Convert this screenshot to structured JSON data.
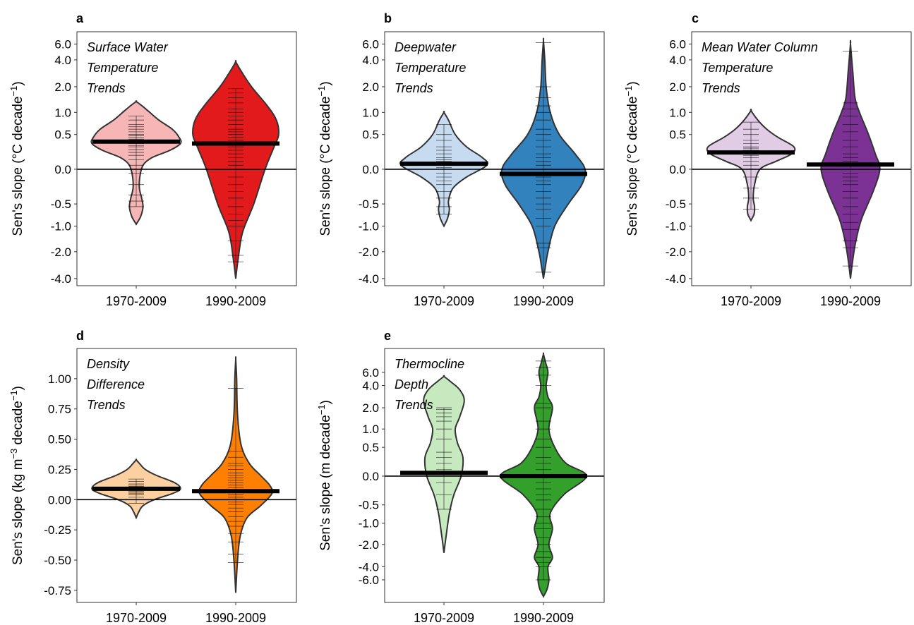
{
  "chart_data": [
    {
      "type": "violin",
      "letter": "a",
      "title_lines": [
        "Surface Water",
        "Temperature",
        "Trends"
      ],
      "ylabel": "Sen's slope (°C decade⁻¹)",
      "ylabel_parts": {
        "main": "Sen's slope  (°C  decade",
        "sup": "−1",
        "close": ")"
      },
      "scale": "asinh",
      "ylim": [
        -4.8,
        8.2
      ],
      "ticks": [
        6.0,
        4.0,
        2.0,
        1.0,
        0.5,
        0.0,
        -0.5,
        -1.0,
        -2.0,
        -4.0
      ],
      "tick_labels": [
        "6.0",
        "4.0",
        "2.0",
        "1.0",
        "0.5",
        "0.0",
        "-0.5",
        "-1.0",
        "-2.0",
        "-4.0"
      ],
      "categories": [
        "1970-2009",
        "1990-2009"
      ],
      "colors": [
        "#f7b6b6",
        "#e31a1c"
      ],
      "medians": [
        0.38,
        0.35
      ],
      "violins": [
        {
          "profile": [
            [
              -0.95,
              0.0
            ],
            [
              -0.75,
              0.1
            ],
            [
              -0.55,
              0.15
            ],
            [
              -0.4,
              0.12
            ],
            [
              -0.25,
              0.07
            ],
            [
              -0.1,
              0.08
            ],
            [
              0.05,
              0.15
            ],
            [
              0.15,
              0.35
            ],
            [
              0.25,
              0.75
            ],
            [
              0.35,
              0.98
            ],
            [
              0.45,
              0.95
            ],
            [
              0.6,
              0.8
            ],
            [
              0.8,
              0.5
            ],
            [
              1.0,
              0.3
            ],
            [
              1.2,
              0.13
            ],
            [
              1.35,
              0.0
            ]
          ],
          "points": [
            -0.55,
            -0.45,
            -0.35,
            -0.2,
            -0.05,
            0.05,
            0.12,
            0.18,
            0.22,
            0.26,
            0.3,
            0.32,
            0.35,
            0.38,
            0.4,
            0.42,
            0.45,
            0.48,
            0.5,
            0.55,
            0.6,
            0.65,
            0.7,
            0.8,
            0.9
          ]
        },
        {
          "profile": [
            [
              -4.0,
              0.0
            ],
            [
              -2.5,
              0.05
            ],
            [
              -1.2,
              0.15
            ],
            [
              -0.5,
              0.4
            ],
            [
              0.0,
              0.65
            ],
            [
              0.3,
              0.85
            ],
            [
              0.5,
              0.95
            ],
            [
              0.8,
              0.9
            ],
            [
              1.2,
              0.7
            ],
            [
              2.0,
              0.35
            ],
            [
              3.0,
              0.12
            ],
            [
              3.8,
              0.0
            ]
          ],
          "points": [
            -2.6,
            -2.2,
            -1.5,
            -1.0,
            -0.85,
            -0.7,
            -0.55,
            -0.4,
            -0.3,
            -0.2,
            -0.1,
            0.0,
            0.05,
            0.1,
            0.15,
            0.2,
            0.25,
            0.3,
            0.35,
            0.4,
            0.45,
            0.5,
            0.55,
            0.6,
            0.7,
            0.8,
            0.9,
            1.0,
            1.1,
            1.3,
            1.5,
            1.7,
            1.9
          ]
        }
      ]
    },
    {
      "type": "violin",
      "letter": "b",
      "title_lines": [
        "Deepwater",
        "Temperature",
        "Trends"
      ],
      "ylabel": "Sen's slope (°C decade⁻¹)",
      "ylabel_parts": {
        "main": "Sen's slope  (°C  decade",
        "sup": "−1",
        "close": ")"
      },
      "scale": "asinh",
      "ylim": [
        -4.8,
        8.2
      ],
      "ticks": [
        6.0,
        4.0,
        2.0,
        1.0,
        0.5,
        0.0,
        -0.5,
        -1.0,
        -2.0,
        -4.0
      ],
      "tick_labels": [
        "6.0",
        "4.0",
        "2.0",
        "1.0",
        "0.5",
        "0.0",
        "-0.5",
        "-1.0",
        "-2.0",
        "-4.0"
      ],
      "categories": [
        "1970-2009",
        "1990-2009"
      ],
      "colors": [
        "#c6dbef",
        "#3182bd"
      ],
      "medians": [
        0.07,
        -0.06
      ],
      "violins": [
        {
          "profile": [
            [
              -1.0,
              0.0
            ],
            [
              -0.8,
              0.08
            ],
            [
              -0.6,
              0.12
            ],
            [
              -0.45,
              0.1
            ],
            [
              -0.25,
              0.2
            ],
            [
              -0.1,
              0.5
            ],
            [
              0.05,
              0.95
            ],
            [
              0.15,
              0.85
            ],
            [
              0.3,
              0.5
            ],
            [
              0.5,
              0.25
            ],
            [
              0.8,
              0.1
            ],
            [
              1.0,
              0.0
            ]
          ],
          "points": [
            -0.7,
            -0.55,
            -0.4,
            -0.3,
            -0.2,
            -0.15,
            -0.1,
            -0.05,
            0.0,
            0.02,
            0.05,
            0.08,
            0.1,
            0.12,
            0.15,
            0.2,
            0.25,
            0.3,
            0.4,
            0.5,
            0.7
          ]
        },
        {
          "profile": [
            [
              -4.0,
              0.0
            ],
            [
              -3.0,
              0.04
            ],
            [
              -2.0,
              0.1
            ],
            [
              -1.0,
              0.25
            ],
            [
              -0.5,
              0.55
            ],
            [
              -0.2,
              0.85
            ],
            [
              0.0,
              0.92
            ],
            [
              0.2,
              0.7
            ],
            [
              0.5,
              0.35
            ],
            [
              1.0,
              0.15
            ],
            [
              2.0,
              0.06
            ],
            [
              4.0,
              0.03
            ],
            [
              6.5,
              0.0
            ]
          ],
          "points": [
            -3.4,
            -1.8,
            -1.6,
            -1.0,
            -0.8,
            -0.6,
            -0.5,
            -0.4,
            -0.3,
            -0.2,
            -0.15,
            -0.1,
            -0.05,
            0.0,
            0.05,
            0.1,
            0.15,
            0.2,
            0.3,
            0.4,
            0.5,
            0.6,
            0.8,
            1.0,
            1.2,
            1.5,
            2.0,
            6.2
          ]
        }
      ]
    },
    {
      "type": "violin",
      "letter": "c",
      "title_lines": [
        "Mean Water Column",
        "Temperature",
        "Trends"
      ],
      "ylabel": "Sen's slope (°C decade⁻¹)",
      "ylabel_parts": {
        "main": "Sen's slope  (°C  decade",
        "sup": "−1",
        "close": ")"
      },
      "scale": "asinh",
      "ylim": [
        -4.8,
        8.2
      ],
      "ticks": [
        6.0,
        4.0,
        2.0,
        1.0,
        0.5,
        0.0,
        -0.5,
        -1.0,
        -2.0,
        -4.0
      ],
      "tick_labels": [
        "6.0",
        "4.0",
        "2.0",
        "1.0",
        "0.5",
        "0.0",
        "-0.5",
        "-1.0",
        "-2.0",
        "-4.0"
      ],
      "categories": [
        "1970-2009",
        "1990-2009"
      ],
      "colors": [
        "#e1cce6",
        "#7b3294"
      ],
      "medians": [
        0.22,
        0.06
      ],
      "violins": [
        {
          "profile": [
            [
              -0.85,
              0.0
            ],
            [
              -0.7,
              0.07
            ],
            [
              -0.55,
              0.08
            ],
            [
              -0.4,
              0.05
            ],
            [
              -0.2,
              0.08
            ],
            [
              0.0,
              0.2
            ],
            [
              0.1,
              0.55
            ],
            [
              0.2,
              0.9
            ],
            [
              0.3,
              0.95
            ],
            [
              0.45,
              0.6
            ],
            [
              0.6,
              0.35
            ],
            [
              0.8,
              0.15
            ],
            [
              1.05,
              0.0
            ]
          ],
          "points": [
            -0.6,
            -0.4,
            -0.25,
            -0.1,
            0.0,
            0.05,
            0.1,
            0.15,
            0.18,
            0.2,
            0.22,
            0.25,
            0.28,
            0.3,
            0.35,
            0.4,
            0.5,
            0.6,
            0.75
          ]
        },
        {
          "profile": [
            [
              -4.0,
              0.0
            ],
            [
              -2.5,
              0.05
            ],
            [
              -1.5,
              0.12
            ],
            [
              -0.8,
              0.25
            ],
            [
              -0.3,
              0.5
            ],
            [
              0.0,
              0.65
            ],
            [
              0.2,
              0.55
            ],
            [
              0.5,
              0.4
            ],
            [
              1.0,
              0.2
            ],
            [
              1.5,
              0.1
            ],
            [
              3.0,
              0.05
            ],
            [
              6.0,
              0.0
            ]
          ],
          "points": [
            -2.9,
            -1.8,
            -1.5,
            -1.1,
            -0.9,
            -0.7,
            -0.55,
            -0.4,
            -0.3,
            -0.2,
            -0.15,
            -0.1,
            -0.05,
            0.0,
            0.05,
            0.1,
            0.15,
            0.2,
            0.3,
            0.4,
            0.55,
            0.7,
            0.9,
            1.1,
            1.3,
            5.0
          ]
        }
      ]
    },
    {
      "type": "violin",
      "letter": "d",
      "title_lines": [
        "Density",
        "Difference",
        "Trends"
      ],
      "ylabel": "Sen's slope (kg m⁻³ decade⁻¹)",
      "ylabel_parts": {
        "main": "Sen's slope  (kg  m",
        "sup": "−3",
        "mid": "  decade",
        "sup2": "−1",
        "close": ")"
      },
      "scale": "linear",
      "ylim": [
        -0.85,
        1.25
      ],
      "ticks": [
        1.0,
        0.75,
        0.5,
        0.25,
        0.0,
        -0.25,
        -0.5,
        -0.75
      ],
      "tick_labels": [
        "1.00",
        "0.75",
        "0.50",
        "0.25",
        "0.00",
        "-0.25",
        "-0.50",
        "-0.75"
      ],
      "categories": [
        "1970-2009",
        "1990-2009"
      ],
      "colors": [
        "#fdd0a2",
        "#ff7f00"
      ],
      "medians": [
        0.09,
        0.07
      ],
      "violins": [
        {
          "profile": [
            [
              -0.15,
              0.0
            ],
            [
              -0.1,
              0.06
            ],
            [
              -0.05,
              0.15
            ],
            [
              0.0,
              0.4
            ],
            [
              0.05,
              0.8
            ],
            [
              0.09,
              0.98
            ],
            [
              0.14,
              0.85
            ],
            [
              0.2,
              0.45
            ],
            [
              0.25,
              0.2
            ],
            [
              0.3,
              0.07
            ],
            [
              0.33,
              0.0
            ]
          ],
          "points": [
            -0.03,
            0.0,
            0.02,
            0.04,
            0.05,
            0.06,
            0.07,
            0.08,
            0.09,
            0.1,
            0.11,
            0.12,
            0.13,
            0.15,
            0.17
          ]
        },
        {
          "profile": [
            [
              -0.77,
              0.0
            ],
            [
              -0.5,
              0.04
            ],
            [
              -0.3,
              0.1
            ],
            [
              -0.15,
              0.25
            ],
            [
              -0.05,
              0.55
            ],
            [
              0.05,
              0.8
            ],
            [
              0.12,
              0.75
            ],
            [
              0.2,
              0.55
            ],
            [
              0.3,
              0.3
            ],
            [
              0.45,
              0.12
            ],
            [
              0.7,
              0.04
            ],
            [
              1.0,
              0.02
            ],
            [
              1.16,
              0.0
            ]
          ],
          "points": [
            -0.52,
            -0.45,
            -0.35,
            -0.28,
            -0.22,
            -0.18,
            -0.14,
            -0.1,
            -0.07,
            -0.04,
            -0.02,
            0.0,
            0.02,
            0.04,
            0.06,
            0.08,
            0.1,
            0.12,
            0.14,
            0.16,
            0.18,
            0.2,
            0.22,
            0.25,
            0.28,
            0.3,
            0.35,
            0.4,
            0.92
          ]
        }
      ]
    },
    {
      "type": "violin",
      "letter": "e",
      "title_lines": [
        "Thermocline",
        "Depth",
        "Trends"
      ],
      "ylabel": "Sen's slope (m decade⁻¹)",
      "ylabel_parts": {
        "main": "Sen's slope  (m  decade",
        "sup": "−1",
        "close": ")"
      },
      "scale": "asinh",
      "ylim": [
        -12.0,
        12.5
      ],
      "ticks": [
        6.0,
        4.0,
        2.0,
        1.0,
        0.5,
        0.0,
        -0.5,
        -1.0,
        -2.0,
        -4.0,
        -6.0
      ],
      "tick_labels": [
        "6.0",
        "4.0",
        "2.0",
        "1.0",
        "0.5",
        "0.0",
        "-0.5",
        "-1.0",
        "-2.0",
        "-4.0",
        "-6.0"
      ],
      "categories": [
        "1970-2009",
        "1990-2009"
      ],
      "colors": [
        "#c7e9c0",
        "#33a02c"
      ],
      "medians": [
        0.05,
        0.0
      ],
      "violins": [
        {
          "profile": [
            [
              -2.6,
              0.0
            ],
            [
              -1.5,
              0.05
            ],
            [
              -0.7,
              0.12
            ],
            [
              -0.3,
              0.22
            ],
            [
              0.0,
              0.38
            ],
            [
              0.3,
              0.42
            ],
            [
              0.6,
              0.3
            ],
            [
              1.0,
              0.25
            ],
            [
              1.5,
              0.35
            ],
            [
              2.5,
              0.45
            ],
            [
              3.5,
              0.35
            ],
            [
              4.5,
              0.15
            ],
            [
              5.3,
              0.0
            ]
          ],
          "points": [
            -0.6,
            -0.3,
            -0.1,
            0.0,
            0.05,
            0.1,
            0.2,
            0.3,
            0.4,
            0.7,
            1.0,
            1.3,
            1.5,
            1.7,
            1.9,
            2.0
          ]
        },
        {
          "profile": [
            [
              -10.0,
              0.0
            ],
            [
              -8.0,
              0.08
            ],
            [
              -6.0,
              0.12
            ],
            [
              -4.0,
              0.1
            ],
            [
              -3.0,
              0.2
            ],
            [
              -2.0,
              0.12
            ],
            [
              -1.2,
              0.2
            ],
            [
              -0.7,
              0.15
            ],
            [
              -0.3,
              0.45
            ],
            [
              0.0,
              0.95
            ],
            [
              0.2,
              0.5
            ],
            [
              0.5,
              0.25
            ],
            [
              1.0,
              0.12
            ],
            [
              2.0,
              0.2
            ],
            [
              2.8,
              0.1
            ],
            [
              4.0,
              0.06
            ],
            [
              6.0,
              0.1
            ],
            [
              8.0,
              0.05
            ],
            [
              10.5,
              0.0
            ]
          ],
          "points": [
            -6.0,
            -4.0,
            -3.5,
            -3.0,
            -2.5,
            -2.0,
            -1.6,
            -1.2,
            -1.0,
            -0.8,
            -0.6,
            -0.4,
            -0.3,
            -0.2,
            -0.1,
            0.0,
            0.1,
            0.2,
            0.3,
            0.5,
            0.7,
            1.0,
            1.3,
            2.0,
            2.3,
            4.0,
            5.5,
            7.0,
            8.5
          ]
        }
      ]
    }
  ]
}
